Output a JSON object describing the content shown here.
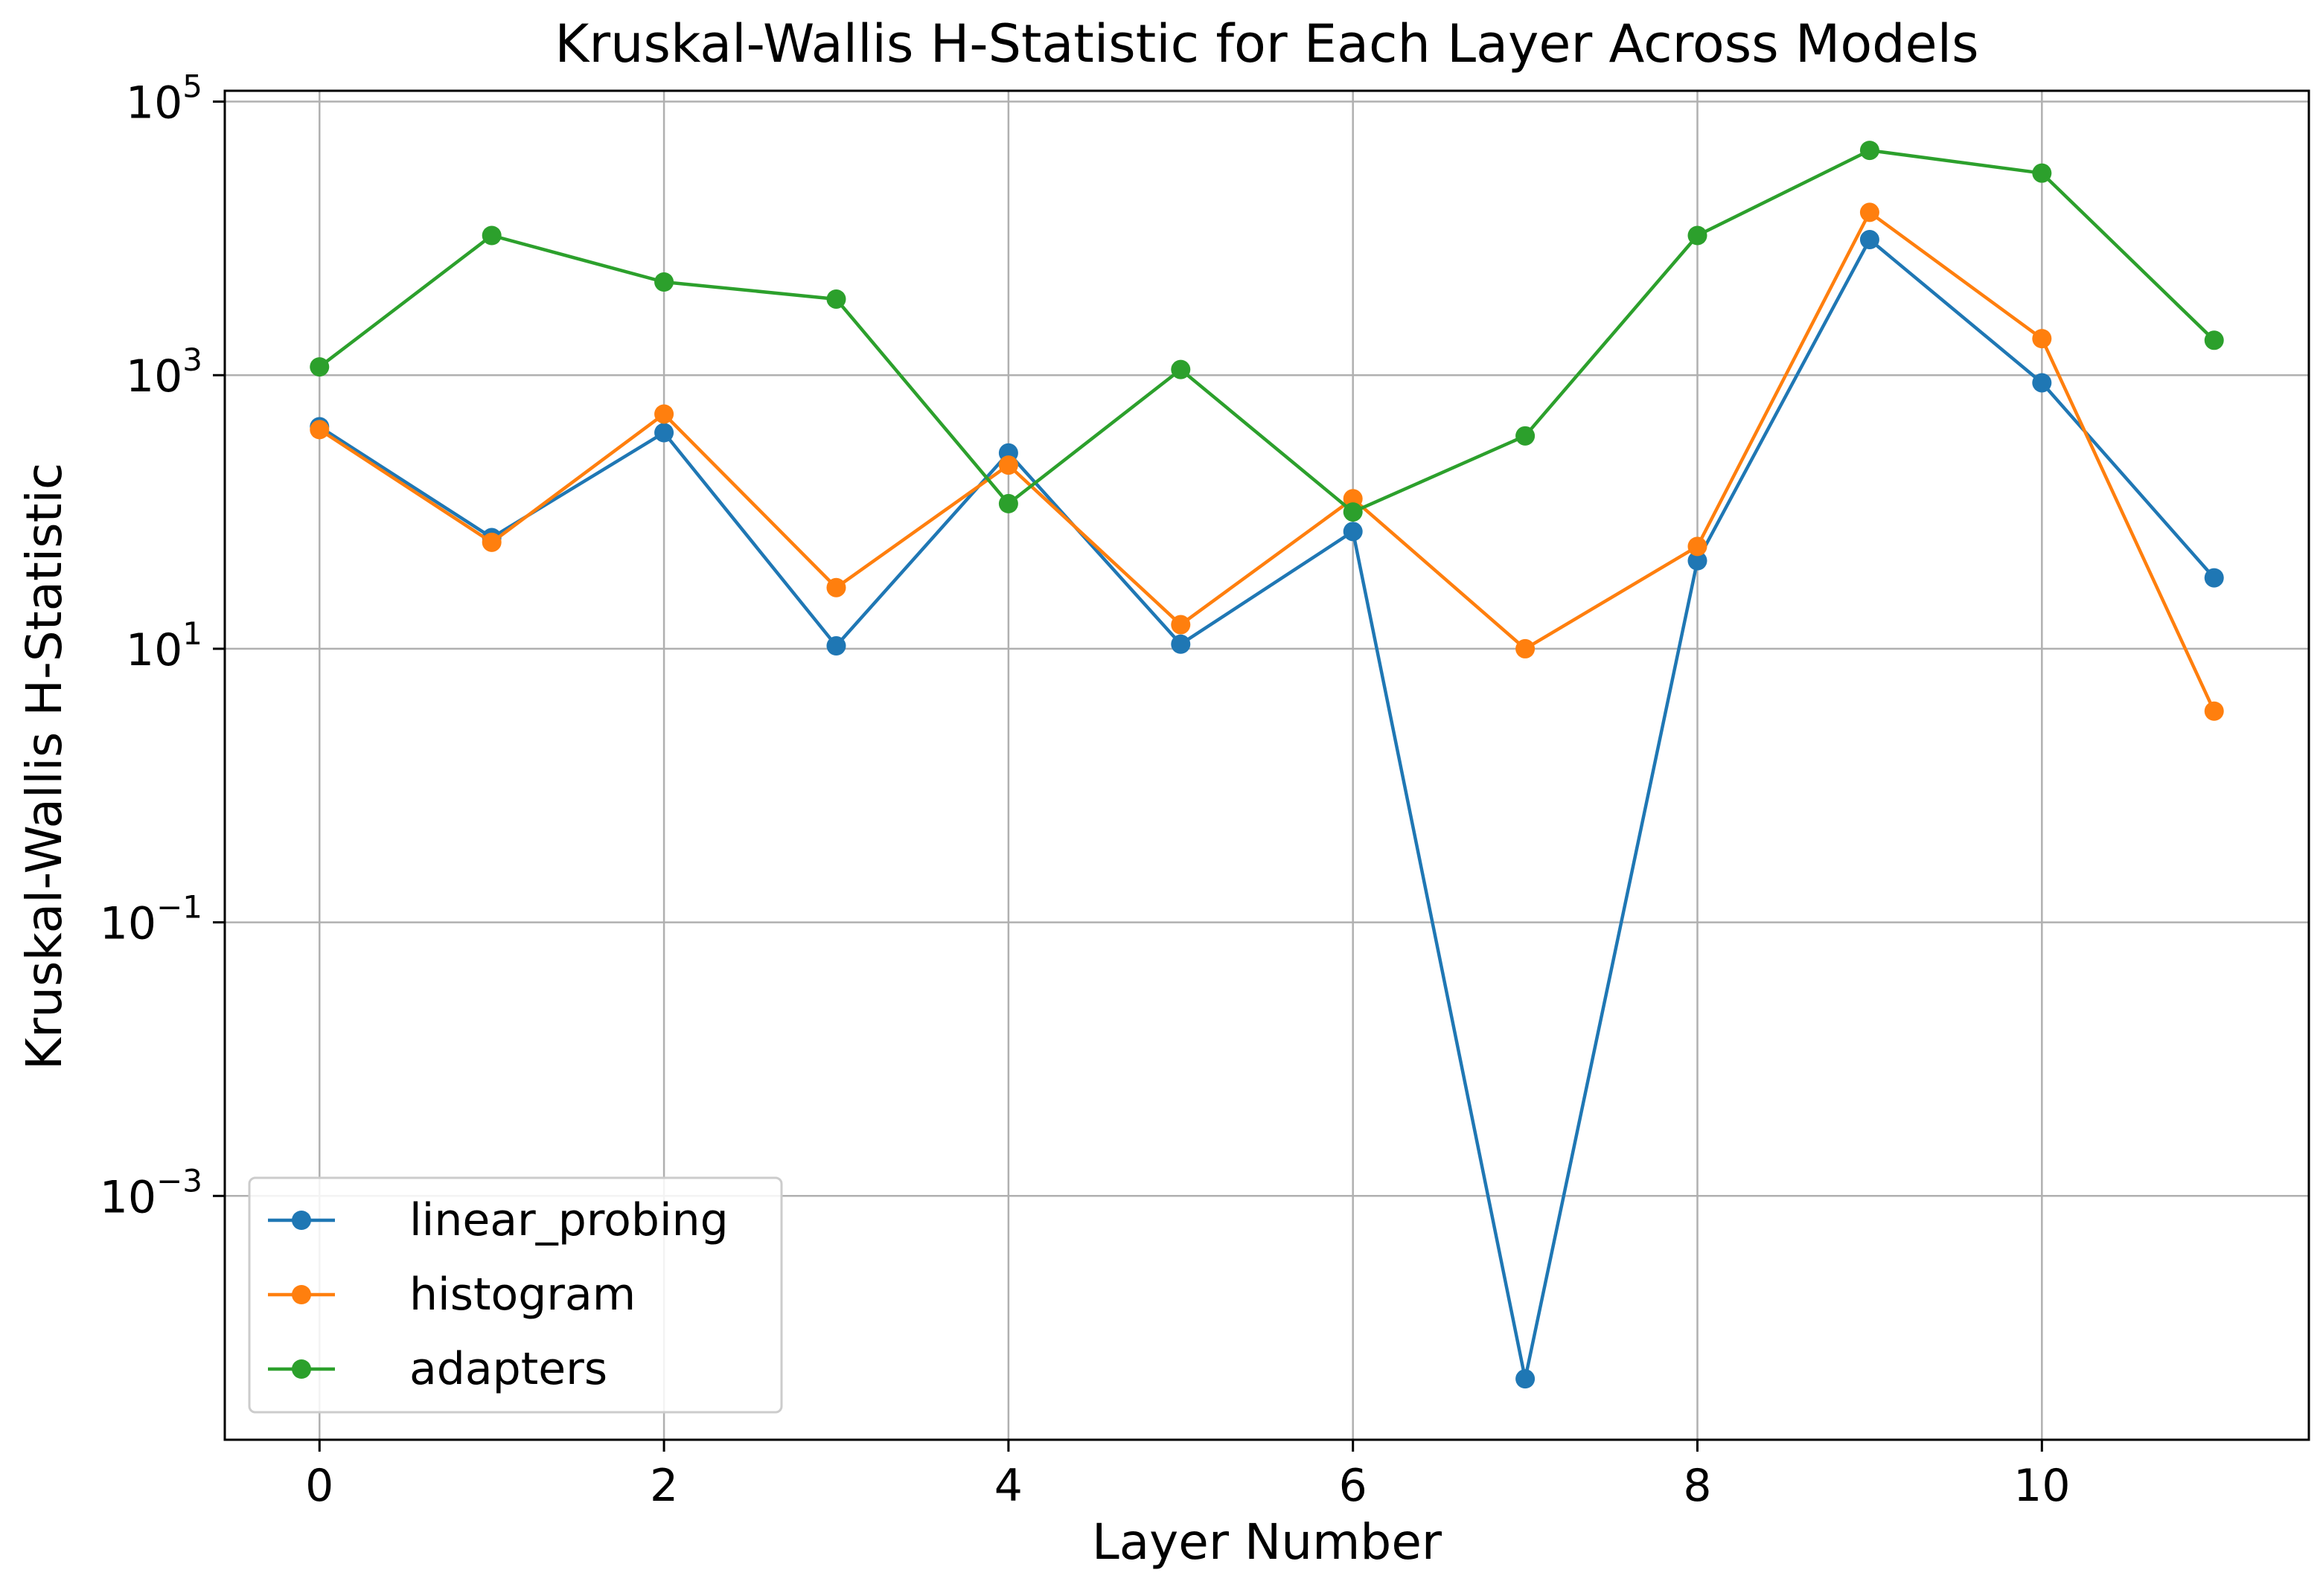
{
  "chart_data": {
    "type": "line",
    "title": "Kruskal-Wallis H-Statistic for Each Layer Across Models",
    "xlabel": "Layer Number",
    "ylabel": "Kruskal-Wallis H-Statistic",
    "x": [
      0,
      1,
      2,
      3,
      4,
      5,
      6,
      7,
      8,
      9,
      10,
      11
    ],
    "xlim": [
      -0.55,
      11.55
    ],
    "x_ticks": [
      0,
      2,
      4,
      6,
      8,
      10
    ],
    "yscale": "log",
    "ylim": [
      1.65e-05,
      120000
    ],
    "y_ticks": [
      {
        "value": 0.001,
        "base": "10",
        "exp": "−3"
      },
      {
        "value": 0.1,
        "base": "10",
        "exp": "−1"
      },
      {
        "value": 10,
        "base": "10",
        "exp": "1"
      },
      {
        "value": 1000,
        "base": "10",
        "exp": "3"
      },
      {
        "value": 100000,
        "base": "10",
        "exp": "5"
      }
    ],
    "grid": true,
    "legend_position": "lower-left",
    "series": [
      {
        "name": "linear_probing",
        "color": "#1f77b4",
        "values": [
          420,
          65,
          380,
          10.5,
          270,
          10.8,
          72,
          4.6e-05,
          44,
          9800,
          880,
          33
        ]
      },
      {
        "name": "histogram",
        "color": "#ff7f0e",
        "values": [
          400,
          60,
          520,
          28,
          220,
          15,
          125,
          10,
          56,
          15500,
          1850,
          3.5
        ]
      },
      {
        "name": "adapters",
        "color": "#2ca02c",
        "values": [
          1150,
          10500,
          4800,
          3600,
          115,
          1100,
          100,
          360,
          10500,
          44000,
          30000,
          1800
        ]
      }
    ]
  }
}
